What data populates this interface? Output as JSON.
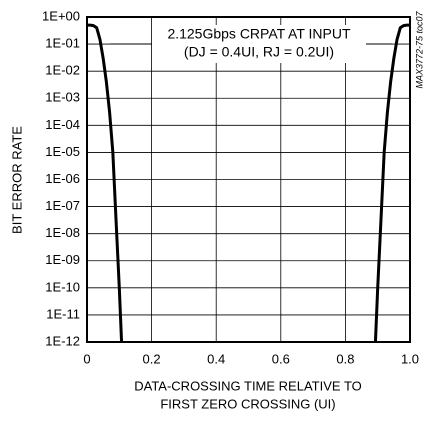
{
  "chart_data": {
    "type": "line",
    "annotation": [
      "2.125Gbps CRPAT AT INPUT",
      "(DJ = 0.4UI, RJ = 0.2UI)"
    ],
    "note": "MAX3772-75 toc07",
    "xlabel": [
      "DATA-CROSSING TIME RELATIVE TO",
      "FIRST ZERO CROSSING (UI)"
    ],
    "ylabel": "BIT ERROR RATE",
    "xlim": [
      0,
      1
    ],
    "xticks": [
      0,
      0.2,
      0.4,
      0.6,
      0.8,
      {
        "value": 1,
        "label": "1.0"
      }
    ],
    "ylim": [
      1e-12,
      1
    ],
    "yscale": "log",
    "yticks": [
      {
        "value": 1,
        "label": "1E+00"
      },
      {
        "value": 0.1,
        "label": "1E-01"
      },
      {
        "value": 0.01,
        "label": "1E-02"
      },
      {
        "value": 0.001,
        "label": "1E-03"
      },
      {
        "value": 0.0001,
        "label": "1E-04"
      },
      {
        "value": 1e-05,
        "label": "1E-05"
      },
      {
        "value": 1e-06,
        "label": "1E-06"
      },
      {
        "value": 1e-07,
        "label": "1E-07"
      },
      {
        "value": 1e-08,
        "label": "1E-08"
      },
      {
        "value": 1e-09,
        "label": "1E-09"
      },
      {
        "value": 1e-10,
        "label": "1E-10"
      },
      {
        "value": 1e-11,
        "label": "1E-11"
      },
      {
        "value": 1e-12,
        "label": "1E-12"
      }
    ],
    "grid": true,
    "series": [
      {
        "color": "#000000",
        "x": [
          0,
          0.01,
          0.02,
          0.03,
          0.04,
          0.05,
          0.06,
          0.07,
          0.08,
          0.09,
          0.1,
          0.107
        ],
        "values": [
          0.5,
          0.5,
          0.48,
          0.4,
          0.15,
          0.03,
          0.004,
          0.0003,
          1e-05,
          3e-08,
          1e-10,
          1e-12
        ]
      },
      {
        "color": "#000000",
        "x": [
          0.893,
          0.9,
          0.91,
          0.92,
          0.93,
          0.94,
          0.95,
          0.96,
          0.97,
          0.98,
          0.99,
          1
        ],
        "values": [
          1e-12,
          1e-10,
          3e-08,
          1e-05,
          0.0003,
          0.004,
          0.03,
          0.15,
          0.4,
          0.48,
          0.5,
          0.5
        ]
      }
    ]
  }
}
